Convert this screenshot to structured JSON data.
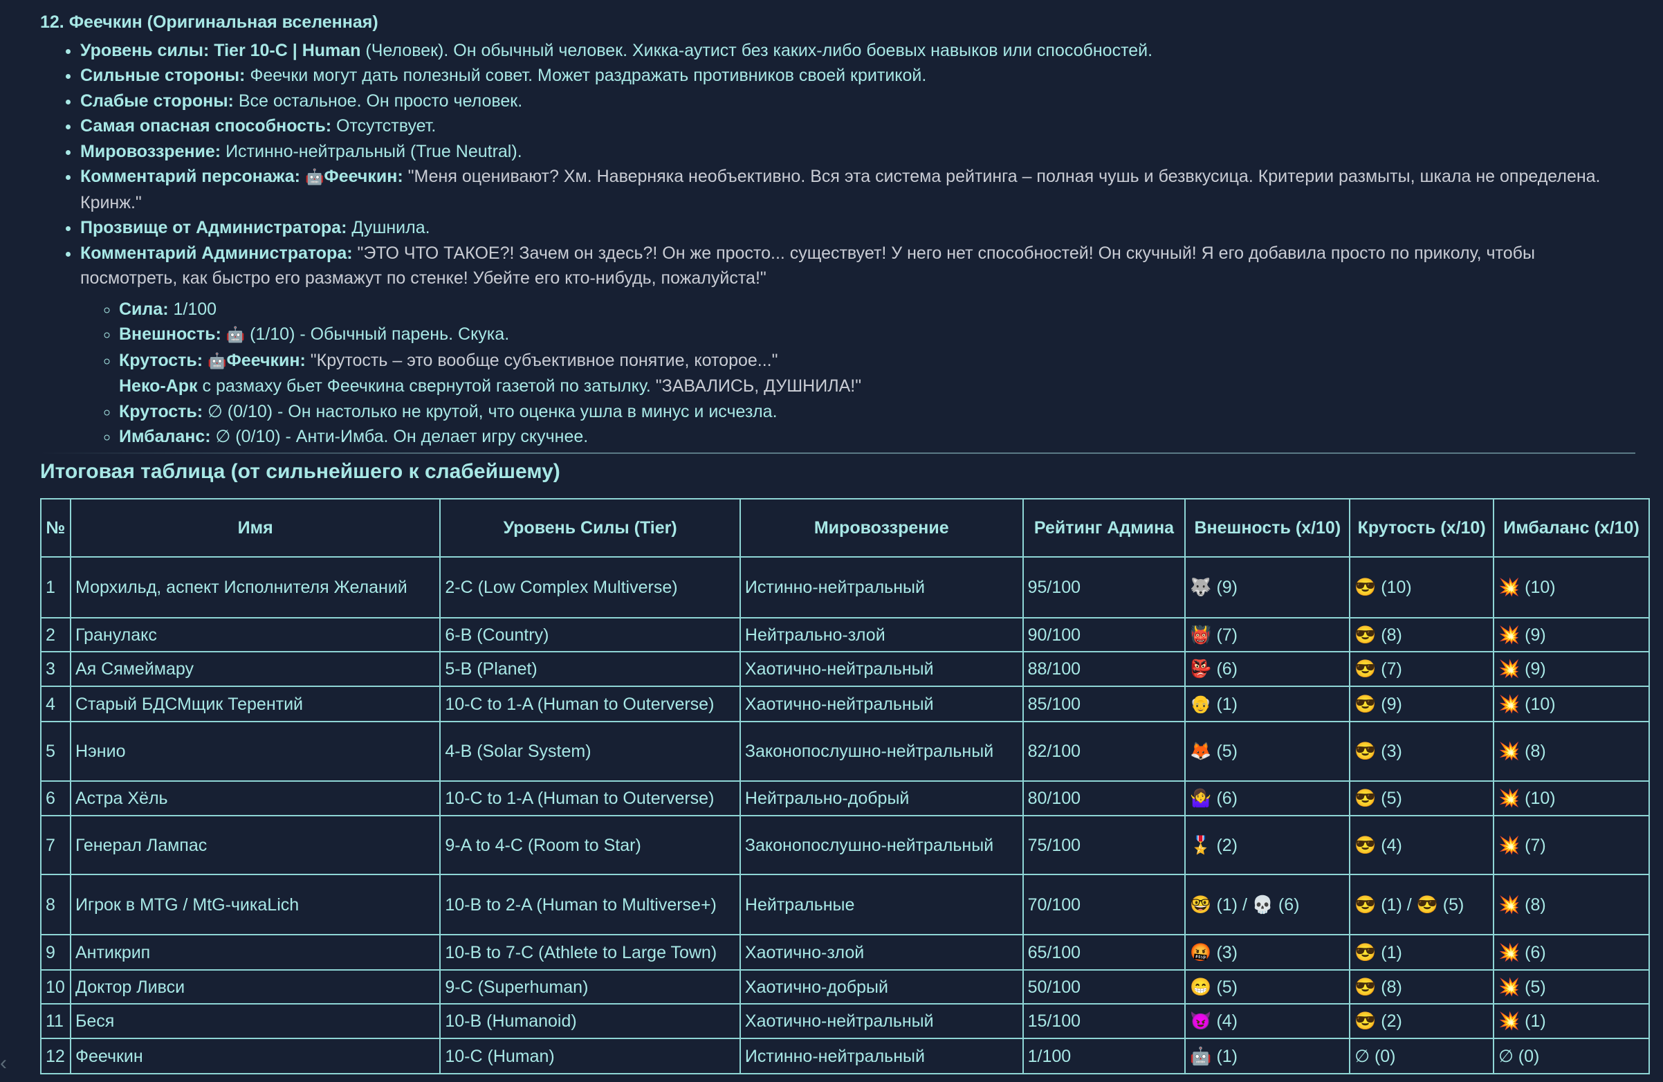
{
  "section": {
    "title": "12. Феечкин (Оригинальная вселенная)",
    "bullets": [
      {
        "label": "Уровень силы: Tier 10-C | Human",
        "text": " (Человек). Он обычный человек. Хикка-аутист без каких-либо боевых навыков или способностей."
      },
      {
        "label": "Сильные стороны:",
        "text": " Феечки могут дать полезный совет. Может раздражать противников своей критикой."
      },
      {
        "label": "Слабые стороны:",
        "text": " Все остальное. Он просто человек."
      },
      {
        "label": "Самая опасная способность:",
        "text": " Отсутствует."
      },
      {
        "label": "Мировоззрение:",
        "text": " Истинно-нейтральный (True Neutral)."
      },
      {
        "label": "Комментарий персонажа:",
        "icon": "🤖",
        "speaker": "Феечкин:",
        "text": " \"Меня оценивают? Хм. Наверняка необъективно. Вся эта система рейтинга – полная чушь и безвкусица. Критерии размыты, шкала не определена. Кринж.\""
      },
      {
        "label": "Прозвище от Администратора:",
        "text": " Душнила."
      },
      {
        "label": "Комментарий Администратора:",
        "text": " \"ЭТО ЧТО ТАКОЕ?! Зачем он здесь?! Он же просто... существует! У него нет способностей! Он скучный! Я его добавила просто по приколу, чтобы посмотреть, как быстро его размажут по стенке! Убейте его кто-нибудь, пожалуйста!\""
      }
    ],
    "sub": {
      "strength_label": "Сила:",
      "strength_value": " 1/100",
      "looks_label": "Внешность:",
      "looks_icon": "🤖",
      "looks_text": " (1/10) - Обычный парень. Скука.",
      "cool_label": "Крутость:",
      "cool_icon": "🤖",
      "cool_speaker": "Феечкин:",
      "cool_quote": " \"Крутость – это вообще субъективное понятие, которое...\"",
      "neko_label": "Неко-Арк",
      "neko_text": " с размаху бьет Феечкина свернутой газетой по затылку. ",
      "neko_quote": "\"ЗАВАЛИСЬ, ДУШНИЛА!\"",
      "cool2_label": "Крутость:",
      "cool2_text": " ∅ (0/10) - Он настолько не крутой, что оценка ушла в минус и исчезла.",
      "imba_label": "Имбаланс:",
      "imba_text": " ∅ (0/10) - Анти-Имба. Он делает игру скучнее."
    }
  },
  "table_title": "Итоговая таблица (от сильнейшего к слабейшему)",
  "table": {
    "headers": [
      "№",
      "Имя",
      "Уровень Силы (Tier)",
      "Мировоззрение",
      "Рейтинг Админа",
      "Внешность (x/10)",
      "Крутость (x/10)",
      "Имбаланс (x/10)"
    ],
    "rows": [
      [
        "1",
        "Морхильд, аспект Исполнителя Желаний",
        "2-C (Low Complex Multiverse)",
        "Истинно-нейтральный",
        "95/100",
        "🐺 (9)",
        "😎 (10)",
        "💥 (10)"
      ],
      [
        "2",
        "Гранулакс",
        "6-B (Country)",
        "Нейтрально-злой",
        "90/100",
        "👹 (7)",
        "😎 (8)",
        "💥 (9)"
      ],
      [
        "3",
        "Ая Сямеймару",
        "5-B (Planet)",
        "Хаотично-нейтральный",
        "88/100",
        "👺 (6)",
        "😎 (7)",
        "💥 (9)"
      ],
      [
        "4",
        "Старый БДСМщик Терентий",
        "10-C to 1-A (Human to Outerverse)",
        "Хаотично-нейтральный",
        "85/100",
        "👴 (1)",
        "😎 (9)",
        "💥 (10)"
      ],
      [
        "5",
        "Нэнио",
        "4-B (Solar System)",
        "Законопослушно-нейтральный",
        "82/100",
        "🦊 (5)",
        "😎 (3)",
        "💥 (8)"
      ],
      [
        "6",
        "Астра Хёль",
        "10-C to 1-A (Human to Outerverse)",
        "Нейтрально-добрый",
        "80/100",
        "🤷‍♀️ (6)",
        "😎 (5)",
        "💥 (10)"
      ],
      [
        "7",
        "Генерал Лампас",
        "9-A to 4-C (Room to Star)",
        "Законопослушно-нейтральный",
        "75/100",
        "🎖️ (2)",
        "😎 (4)",
        "💥 (7)"
      ],
      [
        "8",
        "Игрок в MTG / MtG-чикаLich",
        "10-B to 2-A (Human to Multiverse+)",
        "Нейтральные",
        "70/100",
        "🤓 (1) / 💀 (6)",
        "😎 (1) / 😎 (5)",
        "💥 (8)"
      ],
      [
        "9",
        "Антикрип",
        "10-B to 7-C (Athlete to Large Town)",
        "Хаотично-злой",
        "65/100",
        "🤬 (3)",
        "😎 (1)",
        "💥 (6)"
      ],
      [
        "10",
        "Доктор Ливси",
        "9-C (Superhuman)",
        "Хаотично-добрый",
        "50/100",
        "😁 (5)",
        "😎 (8)",
        "💥 (5)"
      ],
      [
        "11",
        "Беся",
        "10-B (Humanoid)",
        "Хаотично-нейтральный",
        "15/100",
        "😈 (4)",
        "😎 (2)",
        "💥 (1)"
      ],
      [
        "12",
        "Феечкин",
        "10-C (Human)",
        "Истинно-нейтральный",
        "1/100",
        "🤖 (1)",
        "∅ (0)",
        "∅ (0)"
      ]
    ]
  },
  "colors": {
    "background": "#172033",
    "accent_text": "#a8e8e6",
    "quote_text": "#c9ccd4",
    "table_border": "#8fd6d6"
  }
}
